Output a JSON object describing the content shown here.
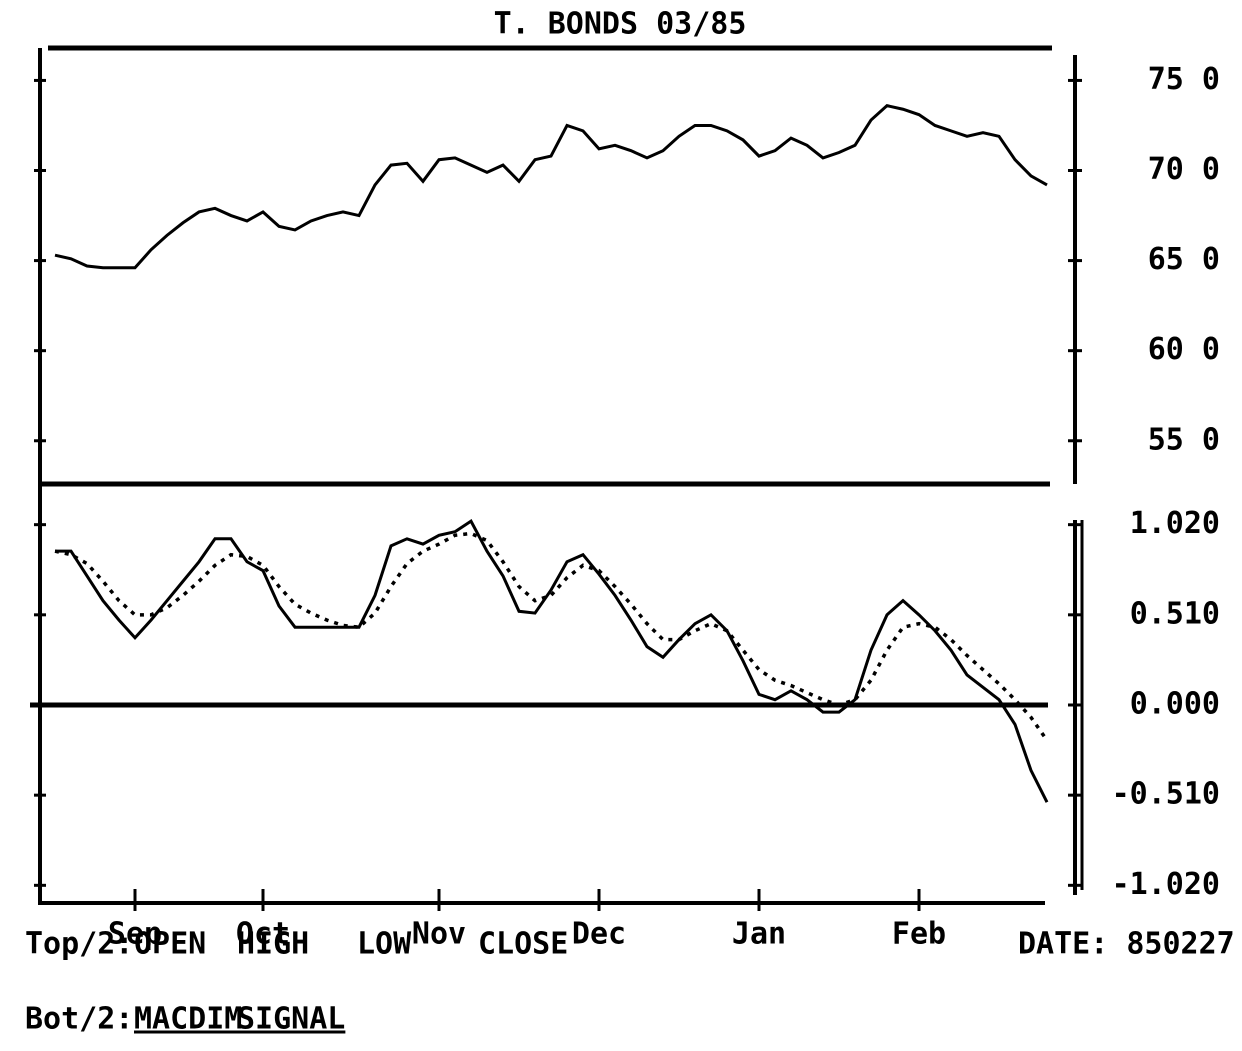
{
  "chart_data": [
    {
      "type": "line",
      "title": "T. BONDS  03/85",
      "series": [
        {
          "name": "CLOSE",
          "color": "#000000",
          "dash": "solid",
          "values": [
            65.3,
            65.1,
            64.7,
            64.6,
            64.6,
            64.6,
            65.6,
            66.4,
            67.1,
            67.7,
            67.9,
            67.5,
            67.2,
            67.7,
            66.9,
            66.7,
            67.2,
            67.5,
            67.7,
            67.5,
            69.2,
            70.3,
            70.4,
            69.4,
            70.6,
            70.7,
            70.3,
            69.9,
            70.3,
            69.4,
            70.6,
            70.8,
            72.5,
            72.2,
            71.2,
            71.4,
            71.1,
            70.7,
            71.1,
            71.9,
            72.5,
            72.5,
            72.2,
            71.7,
            70.8,
            71.1,
            71.8,
            71.4,
            70.7,
            71.0,
            71.4,
            72.8,
            73.6,
            73.4,
            73.1,
            72.5,
            72.2,
            71.9,
            72.1,
            71.9,
            70.6,
            69.7,
            69.2
          ]
        }
      ],
      "ylim": [
        52.6,
        76.8
      ],
      "yticks": [
        {
          "value": 75,
          "label": "75 0"
        },
        {
          "value": 70,
          "label": "70 0"
        },
        {
          "value": 65,
          "label": "65 0"
        },
        {
          "value": 60,
          "label": "60 0"
        },
        {
          "value": 55,
          "label": "55 0"
        }
      ]
    },
    {
      "type": "line",
      "categories": [
        null,
        null,
        null,
        null,
        null,
        "Sep",
        null,
        null,
        null,
        null,
        null,
        null,
        null,
        "Oct",
        null,
        null,
        null,
        null,
        null,
        null,
        null,
        null,
        null,
        null,
        "Nov",
        null,
        null,
        null,
        null,
        null,
        null,
        null,
        null,
        null,
        "Dec",
        null,
        null,
        null,
        null,
        null,
        null,
        null,
        null,
        null,
        "Jan",
        null,
        null,
        null,
        null,
        null,
        null,
        null,
        null,
        null,
        "Feb",
        null,
        null,
        null,
        null,
        null,
        null,
        null,
        null
      ],
      "series": [
        {
          "name": "MACDIM",
          "color": "#000000",
          "dash": "solid",
          "values": [
            0.87,
            0.87,
            0.73,
            0.59,
            0.48,
            0.38,
            0.48,
            0.59,
            0.7,
            0.81,
            0.94,
            0.94,
            0.81,
            0.76,
            0.56,
            0.44,
            0.44,
            0.44,
            0.44,
            0.44,
            0.62,
            0.9,
            0.94,
            0.91,
            0.96,
            0.98,
            1.04,
            0.87,
            0.73,
            0.53,
            0.52,
            0.65,
            0.81,
            0.85,
            0.74,
            0.62,
            0.48,
            0.33,
            0.27,
            0.37,
            0.46,
            0.51,
            0.42,
            0.25,
            0.06,
            0.03,
            0.08,
            0.03,
            -0.04,
            -0.04,
            0.03,
            0.31,
            0.51,
            0.59,
            0.51,
            0.42,
            0.31,
            0.17,
            0.1,
            0.03,
            -0.11,
            -0.37,
            -0.55
          ]
        },
        {
          "name": "SIGNAL",
          "color": "#000000",
          "dash": "dotted",
          "values": [
            0.87,
            0.85,
            0.8,
            0.7,
            0.59,
            0.51,
            0.51,
            0.55,
            0.62,
            0.7,
            0.79,
            0.85,
            0.84,
            0.79,
            0.67,
            0.57,
            0.52,
            0.48,
            0.45,
            0.44,
            0.52,
            0.67,
            0.8,
            0.87,
            0.91,
            0.96,
            0.97,
            0.93,
            0.81,
            0.67,
            0.59,
            0.62,
            0.72,
            0.79,
            0.76,
            0.67,
            0.57,
            0.46,
            0.37,
            0.37,
            0.42,
            0.46,
            0.42,
            0.31,
            0.2,
            0.14,
            0.11,
            0.07,
            0.03,
            0.0,
            0.03,
            0.14,
            0.31,
            0.44,
            0.46,
            0.44,
            0.37,
            0.28,
            0.2,
            0.12,
            0.03,
            -0.07,
            -0.2
          ]
        }
      ],
      "ylim": [
        -1.12,
        1.25
      ],
      "yticks": [
        {
          "value": 1.02,
          "label": "1.020"
        },
        {
          "value": 0.51,
          "label": "0.510"
        },
        {
          "value": 0,
          "label": "0.000"
        },
        {
          "value": -0.51,
          "label": "-0.510"
        },
        {
          "value": -1.02,
          "label": "-1.020"
        }
      ]
    }
  ],
  "footer": {
    "top_prefix": "Top/2:",
    "top_fields": [
      "OPEN",
      "HIGH",
      "LOW"
    ],
    "bottom_prefix": "Bot/2:",
    "date": "DATE: 850227"
  }
}
